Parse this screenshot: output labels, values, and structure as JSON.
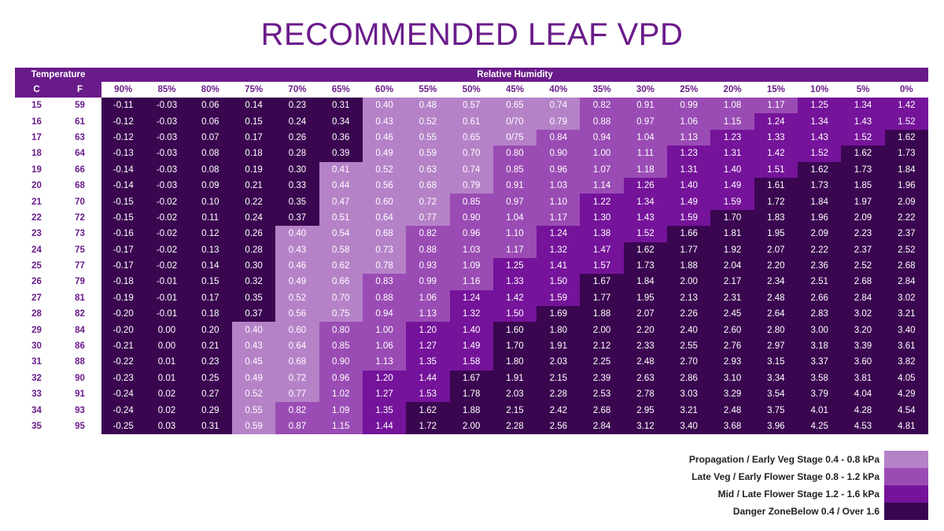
{
  "title": "RECOMMENDED LEAF VPD",
  "colors": {
    "propagation": "#b582c8",
    "late_veg": "#9a4cb4",
    "mid_flower": "#75139a",
    "danger": "#3a0650",
    "header_bg": "#6a1b8a"
  },
  "chart_data": {
    "type": "heatmap",
    "row_header": "Temperature",
    "col_header": "Relative Humidity",
    "c_label": "C",
    "f_label": "F",
    "humidity": [
      "90%",
      "85%",
      "80%",
      "75%",
      "70%",
      "65%",
      "60%",
      "55%",
      "50%",
      "45%",
      "40%",
      "35%",
      "30%",
      "25%",
      "20%",
      "15%",
      "10%",
      "5%",
      "0%"
    ],
    "rows": [
      {
        "c": "15",
        "f": "59",
        "values": [
          "-0.11",
          "-0.03",
          "0.06",
          "0.14",
          "0.23",
          "0.31",
          "0.40",
          "0.48",
          "0.57",
          "0.65",
          "0.74",
          "0.82",
          "0.91",
          "0.99",
          "1.08",
          "1.17",
          "1.25",
          "1.34",
          "1.42"
        ]
      },
      {
        "c": "16",
        "f": "61",
        "values": [
          "-0.12",
          "-0.03",
          "0.06",
          "0.15",
          "0.24",
          "0.34",
          "0.43",
          "0.52",
          "0.61",
          "0/70",
          "0.79",
          "0.88",
          "0.97",
          "1.06",
          "1.15",
          "1.24",
          "1.34",
          "1.43",
          "1.52"
        ]
      },
      {
        "c": "17",
        "f": "63",
        "values": [
          "-0.12",
          "-0.03",
          "0.07",
          "0.17",
          "0.26",
          "0.36",
          "0.46",
          "0.55",
          "0.65",
          "0/75",
          "0.84",
          "0.94",
          "1.04",
          "1.13",
          "1.23",
          "1.33",
          "1.43",
          "1.52",
          "1.62"
        ]
      },
      {
        "c": "18",
        "f": "64",
        "values": [
          "-0.13",
          "-0.03",
          "0.08",
          "0.18",
          "0.28",
          "0.39",
          "0.49",
          "0.59",
          "0.70",
          "0.80",
          "0.90",
          "1.00",
          "1.11",
          "1.23",
          "1.31",
          "1.42",
          "1.52",
          "1.62",
          "1.73"
        ]
      },
      {
        "c": "19",
        "f": "66",
        "values": [
          "-0.14",
          "-0.03",
          "0.08",
          "0.19",
          "0.30",
          "0.41",
          "0.52",
          "0.63",
          "0.74",
          "0.85",
          "0.96",
          "1.07",
          "1.18",
          "1.31",
          "1.40",
          "1.51",
          "1.62",
          "1.73",
          "1.84"
        ]
      },
      {
        "c": "20",
        "f": "68",
        "values": [
          "-0.14",
          "-0.03",
          "0.09",
          "0.21",
          "0.33",
          "0.44",
          "0.56",
          "0.68",
          "0.79",
          "0.91",
          "1.03",
          "1.14",
          "1.26",
          "1.40",
          "1.49",
          "1.61",
          "1.73",
          "1.85",
          "1.96"
        ]
      },
      {
        "c": "21",
        "f": "70",
        "values": [
          "-0.15",
          "-0.02",
          "0.10",
          "0.22",
          "0.35",
          "0.47",
          "0.60",
          "0.72",
          "0.85",
          "0.97",
          "1.10",
          "1.22",
          "1.34",
          "1.49",
          "1.59",
          "1.72",
          "1.84",
          "1.97",
          "2.09"
        ]
      },
      {
        "c": "22",
        "f": "72",
        "values": [
          "-0.15",
          "-0.02",
          "0.11",
          "0.24",
          "0.37",
          "0.51",
          "0.64",
          "0.77",
          "0.90",
          "1.04",
          "1.17",
          "1.30",
          "1.43",
          "1.59",
          "1.70",
          "1.83",
          "1.96",
          "2.09",
          "2.22"
        ]
      },
      {
        "c": "23",
        "f": "73",
        "values": [
          "-0.16",
          "-0.02",
          "0.12",
          "0.26",
          "0.40",
          "0.54",
          "0.68",
          "0.82",
          "0.96",
          "1.10",
          "1.24",
          "1.38",
          "1.52",
          "1.66",
          "1.81",
          "1.95",
          "2.09",
          "2.23",
          "2.37"
        ]
      },
      {
        "c": "24",
        "f": "75",
        "values": [
          "-0.17",
          "-0.02",
          "0.13",
          "0.28",
          "0.43",
          "0.58",
          "0.73",
          "0.88",
          "1.03",
          "1.17",
          "1.32",
          "1.47",
          "1.62",
          "1.77",
          "1.92",
          "2.07",
          "2.22",
          "2.37",
          "2.52"
        ]
      },
      {
        "c": "25",
        "f": "77",
        "values": [
          "-0.17",
          "-0.02",
          "0.14",
          "0.30",
          "0.46",
          "0.62",
          "0.78",
          "0.93",
          "1.09",
          "1.25",
          "1.41",
          "1.57",
          "1.73",
          "1.88",
          "2.04",
          "2.20",
          "2.36",
          "2.52",
          "2.68"
        ]
      },
      {
        "c": "26",
        "f": "79",
        "values": [
          "-0.18",
          "-0.01",
          "0.15",
          "0.32",
          "0.49",
          "0.66",
          "0.83",
          "0.99",
          "1.16",
          "1.33",
          "1.50",
          "1.67",
          "1.84",
          "2.00",
          "2.17",
          "2.34",
          "2.51",
          "2.68",
          "2.84"
        ]
      },
      {
        "c": "27",
        "f": "81",
        "values": [
          "-0.19",
          "-0.01",
          "0.17",
          "0.35",
          "0.52",
          "0.70",
          "0.88",
          "1.06",
          "1.24",
          "1.42",
          "1.59",
          "1.77",
          "1.95",
          "2.13",
          "2.31",
          "2.48",
          "2.66",
          "2.84",
          "3.02"
        ]
      },
      {
        "c": "28",
        "f": "82",
        "values": [
          "-0.20",
          "-0.01",
          "0.18",
          "0.37",
          "0.56",
          "0.75",
          "0.94",
          "1.13",
          "1.32",
          "1.50",
          "1.69",
          "1.88",
          "2.07",
          "2.26",
          "2.45",
          "2.64",
          "2.83",
          "3.02",
          "3.21"
        ]
      },
      {
        "c": "29",
        "f": "84",
        "values": [
          "-0.20",
          "0.00",
          "0.20",
          "0.40",
          "0.60",
          "0.80",
          "1.00",
          "1.20",
          "1.40",
          "1.60",
          "1.80",
          "2.00",
          "2.20",
          "2.40",
          "2.60",
          "2.80",
          "3.00",
          "3.20",
          "3.40"
        ]
      },
      {
        "c": "30",
        "f": "86",
        "values": [
          "-0.21",
          "0.00",
          "0.21",
          "0.43",
          "0.64",
          "0.85",
          "1.06",
          "1.27",
          "1.49",
          "1.70",
          "1.91",
          "2.12",
          "2.33",
          "2.55",
          "2.76",
          "2.97",
          "3.18",
          "3.39",
          "3.61"
        ]
      },
      {
        "c": "31",
        "f": "88",
        "values": [
          "-0.22",
          "0.01",
          "0.23",
          "0.45",
          "0.68",
          "0.90",
          "1.13",
          "1.35",
          "1.58",
          "1.80",
          "2.03",
          "2.25",
          "2.48",
          "2.70",
          "2.93",
          "3.15",
          "3.37",
          "3.60",
          "3.82"
        ]
      },
      {
        "c": "32",
        "f": "90",
        "values": [
          "-0.23",
          "0.01",
          "0.25",
          "0.49",
          "0.72",
          "0.96",
          "1.20",
          "1.44",
          "1.67",
          "1.91",
          "2.15",
          "2.39",
          "2.63",
          "2.86",
          "3.10",
          "3.34",
          "3.58",
          "3.81",
          "4.05"
        ]
      },
      {
        "c": "33",
        "f": "91",
        "values": [
          "-0.24",
          "0.02",
          "0.27",
          "0.52",
          "0.77",
          "1.02",
          "1.27",
          "1.53",
          "1.78",
          "2.03",
          "2.28",
          "2.53",
          "2.78",
          "3.03",
          "3.29",
          "3.54",
          "3.79",
          "4.04",
          "4.29"
        ]
      },
      {
        "c": "34",
        "f": "93",
        "values": [
          "-0.24",
          "0.02",
          "0.29",
          "0.55",
          "0.82",
          "1.09",
          "1.35",
          "1.62",
          "1.88",
          "2.15",
          "2.42",
          "2.68",
          "2.95",
          "3.21",
          "2.48",
          "3.75",
          "4.01",
          "4.28",
          "4.54"
        ]
      },
      {
        "c": "35",
        "f": "95",
        "values": [
          "-0.25",
          "0.03",
          "0.31",
          "0.59",
          "0.87",
          "1.15",
          "1.44",
          "1.72",
          "2.00",
          "2.28",
          "2.56",
          "2.84",
          "3.12",
          "3.40",
          "3.68",
          "3.96",
          "4.25",
          "4.53",
          "4.81"
        ]
      }
    ],
    "zone_thresholds_kpa": [
      0.4,
      0.8,
      1.2,
      1.6
    ]
  },
  "legend": [
    {
      "label": "Propagation / Early Veg Stage 0.4 - 0.8 kPa",
      "color": "#b582c8"
    },
    {
      "label": "Late Veg / Early Flower Stage 0.8 - 1.2 kPa",
      "color": "#9a4cb4"
    },
    {
      "label": "Mid / Late Flower Stage 1.2 - 1.6 kPa",
      "color": "#75139a"
    },
    {
      "label": "Danger ZoneBelow 0.4 / Over 1.6",
      "color": "#3a0650"
    }
  ]
}
